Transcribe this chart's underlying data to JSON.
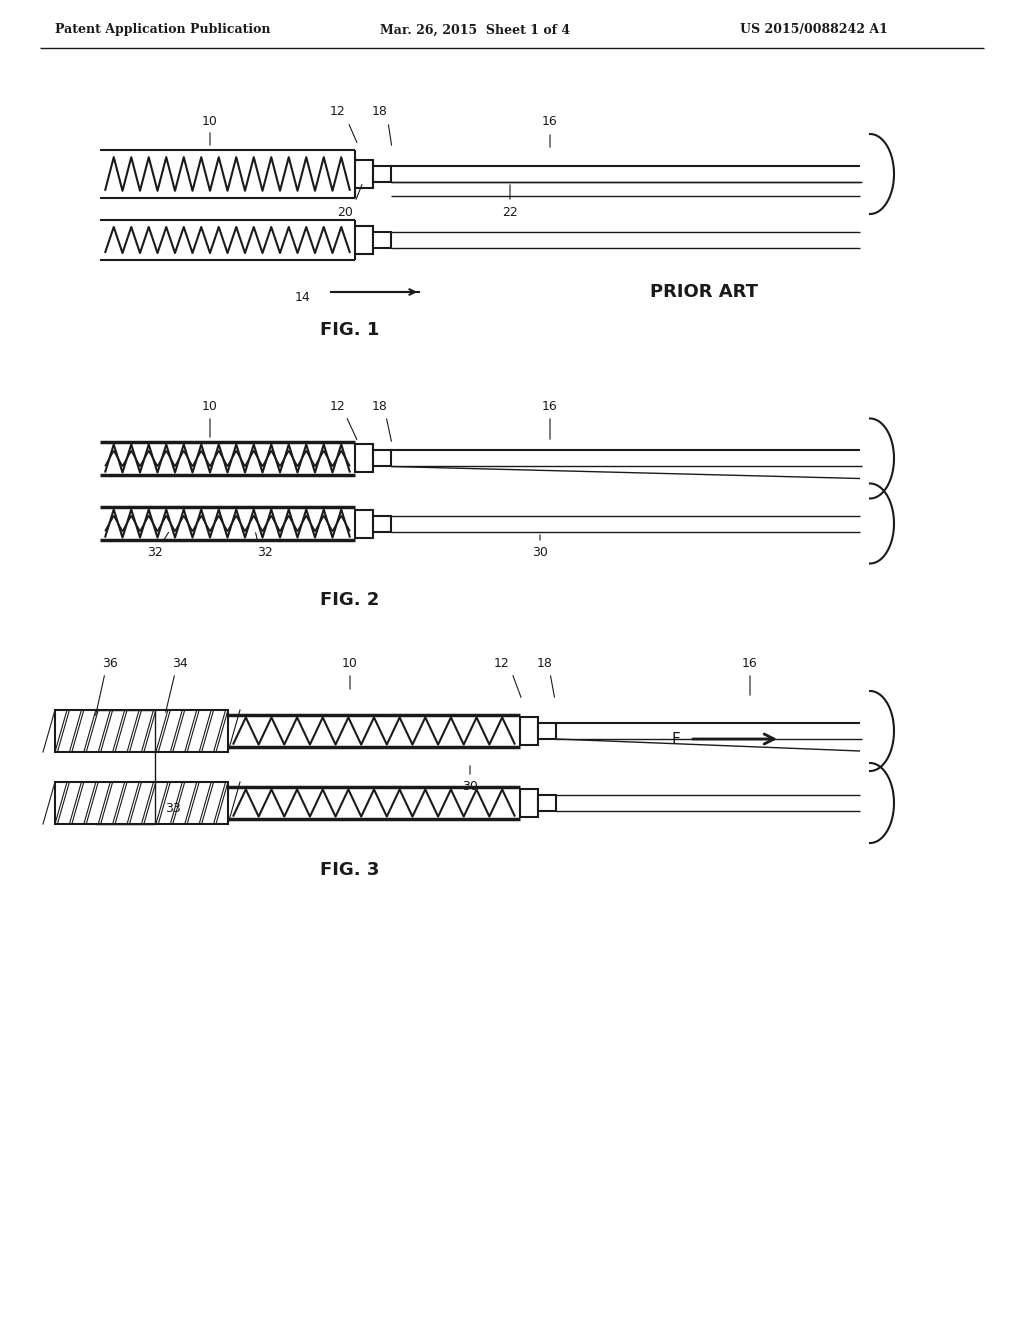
{
  "bg_color": "#ffffff",
  "line_color": "#1a1a1a",
  "header_left": "Patent Application Publication",
  "header_mid": "Mar. 26, 2015  Sheet 1 of 4",
  "header_right": "US 2015/0088242 A1",
  "fig1_label": "FIG. 1",
  "fig2_label": "FIG. 2",
  "fig3_label": "FIG. 3",
  "prior_art": "PRIOR ART",
  "lw": 1.5,
  "lw_thin": 1.0,
  "lw_thick": 2.5
}
